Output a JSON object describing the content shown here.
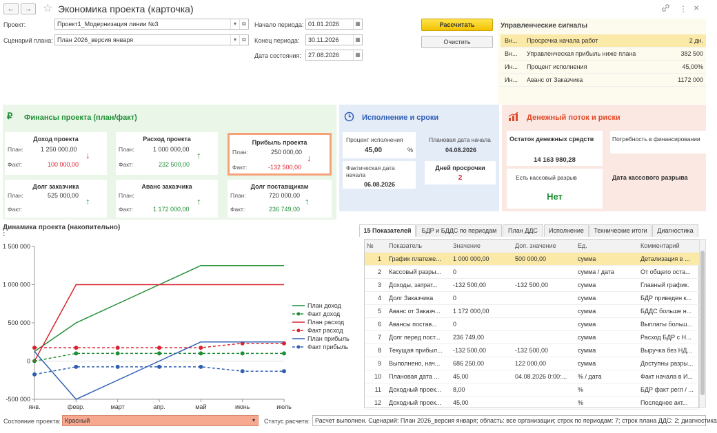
{
  "window": {
    "title": "Экономика проекта (карточка)",
    "back_icon": "←",
    "forward_icon": "→",
    "star_icon": "☆",
    "link_icon": "🔗",
    "more_icon": "⋮",
    "close_icon": "×"
  },
  "form": {
    "project_label": "Проект:",
    "project_value": "Проект1_Модернизация линии №3",
    "scenario_label": "Сценарий плана:",
    "scenario_value": "План 2026_версия января",
    "period_start_label": "Начало периода:",
    "period_start_value": "01.01.2026",
    "period_end_label": "Конец периода:",
    "period_end_value": "30.11.2026",
    "state_date_label": "Дата состояния:",
    "state_date_value": "27.08.2026",
    "calculate_button": "Рассчитать",
    "clear_button": "Очистить"
  },
  "signals": {
    "title": "Управленческие сигналы",
    "rows": [
      {
        "type": "Вн...",
        "text": "Просрочка начала работ",
        "value": "2 дн."
      },
      {
        "type": "Вн...",
        "text": "Управленческая прибыль ниже плана",
        "value": "382 500"
      },
      {
        "type": "Ин...",
        "text": "Процент исполнения",
        "value": "45,00%"
      },
      {
        "type": "Ин...",
        "text": "Аванс от Заказчика",
        "value": "1172 000"
      }
    ]
  },
  "finance": {
    "title": "Финансы проекта (план/факт)",
    "plan_label": "План:",
    "fact_label": "Факт:",
    "cards": [
      {
        "title": "Доход проекта",
        "plan": "1 250 000,00",
        "fact": "100 000,00",
        "arrow": "↓"
      },
      {
        "title": "Расход проекта",
        "plan": "1 000 000,00",
        "fact": "232 500,00",
        "arrow": "↑"
      },
      {
        "title": "Прибыль проекта",
        "plan": "250 000,00",
        "fact": "-132 500,00",
        "arrow": "↓"
      },
      {
        "title": "Долг заказчика",
        "plan": "525 000,00",
        "fact": "",
        "arrow": "↑"
      },
      {
        "title": "Аванс заказчика",
        "plan": "",
        "fact": "1 172 000,00",
        "arrow": "↑"
      },
      {
        "title": "Долг поставщикам",
        "plan": "720 000,00",
        "fact": "236 749,00",
        "arrow": "↑"
      }
    ]
  },
  "execution": {
    "title": "Исполнение и сроки",
    "percent_label": "Процент исполнения",
    "percent_value": "45,00",
    "percent_unit": "%",
    "plan_start_label": "Плановая дата начала",
    "plan_start_value": "04.08.2026",
    "actual_start_label": "Фактическая дата начала",
    "actual_start_value": "06.08.2026",
    "overdue_label": "Дней просрочки",
    "overdue_value": "2"
  },
  "cashflow": {
    "title": "Денежный поток и риски",
    "balance_label": "Остаток денежных средств",
    "balance_value": "14 163 980,28",
    "need_label": "Потребность в финансировании",
    "gap_label": "Есть кассовый разрыв",
    "gap_value": "Нет",
    "gap_date_label": "Дата кассового разрыва"
  },
  "chart_title": "Динамика проекта (накопительно)",
  "chart_title_colon": ":",
  "chart_data": {
    "type": "line",
    "categories": [
      "янв.",
      "февр.",
      "март",
      "апр.",
      "май",
      "июнь",
      "июль"
    ],
    "ylim": [
      -500000,
      1500000
    ],
    "yticks": [
      "1 500 000",
      "1 000 000",
      "500 000",
      "0",
      "-500 000"
    ],
    "series": [
      {
        "name": "План доход",
        "color": "#1f8e34",
        "dashed": false,
        "values": [
          125000,
          500000,
          750000,
          1000000,
          1250000,
          1250000,
          1250000
        ]
      },
      {
        "name": "Факт доход",
        "color": "#1f8e34",
        "dashed": true,
        "values": [
          0,
          100000,
          100000,
          100000,
          100000,
          100000,
          100000
        ]
      },
      {
        "name": "План расход",
        "color": "#d9232e",
        "dashed": false,
        "values": [
          0,
          1000000,
          1000000,
          1000000,
          1000000,
          1000000,
          1000000
        ]
      },
      {
        "name": "Факт расход",
        "color": "#d9232e",
        "dashed": true,
        "values": [
          175000,
          175000,
          175000,
          175000,
          175000,
          232500,
          232500
        ]
      },
      {
        "name": "План прибыль",
        "color": "#2f5fb3",
        "dashed": false,
        "values": [
          125000,
          -500000,
          -250000,
          0,
          250000,
          250000,
          250000
        ]
      },
      {
        "name": "Факт прибыль",
        "color": "#2f5fb3",
        "dashed": true,
        "values": [
          -175000,
          -75000,
          -75000,
          -75000,
          -75000,
          -132500,
          -132500
        ]
      }
    ]
  },
  "tabs": [
    "15 Показателей",
    "БДР и БДДС по периодам",
    "План ДДС",
    "Исполнение",
    "Технические итоги",
    "Диагностика"
  ],
  "table": {
    "headers": [
      "№",
      "Показатель",
      "Значение",
      "Доп. значение",
      "Ед.",
      "Комментарий"
    ],
    "rows": [
      [
        "1",
        "График платеже...",
        "1 000 000,00",
        "500 000,00",
        "сумма",
        "Детализация в ..."
      ],
      [
        "2",
        "Кассовый разры...",
        "0",
        "",
        "сумма / дата",
        "От общего оста..."
      ],
      [
        "3",
        "Доходы, затрат...",
        "-132 500,00",
        "-132 500,00",
        "сумма",
        "Главный график."
      ],
      [
        "4",
        "Долг Заказчика",
        "0",
        "",
        "сумма",
        "БДР приведен к..."
      ],
      [
        "5",
        "Аванс от Заказч...",
        "1 172 000,00",
        "",
        "сумма",
        "БДДС больше н..."
      ],
      [
        "6",
        "Авансы постав...",
        "0",
        "",
        "сумма",
        "Выплаты больш..."
      ],
      [
        "7",
        "Долг перед пост...",
        "236 749,00",
        "",
        "сумма",
        "Расход БДР с Н..."
      ],
      [
        "8",
        "Текущая прибыл...",
        "-132 500,00",
        "-132 500,00",
        "сумма",
        "Выручка без НД..."
      ],
      [
        "9",
        "Выполнено, нач...",
        "686 250,00",
        "122 000,00",
        "сумма",
        "Доступны разры..."
      ],
      [
        "10",
        "Плановая дата ...",
        "45,00",
        "04.08.2026 0:00:...",
        "% / дата",
        "Факт начала в И..."
      ],
      [
        "11",
        "Доходный проек...",
        "8,00",
        "",
        "%",
        "БДР факт регл / ..."
      ],
      [
        "12",
        "Доходный проек...",
        "45,00",
        "",
        "%",
        "Последнее акт..."
      ]
    ]
  },
  "footer": {
    "state_label": "Состояние проекта:",
    "state_value": "Красный",
    "status_label": "Статус расчета:",
    "status_value": "Расчет выполнен. Сценарий: План 2026_версия января; область: все организации; строк по периодам: 7; строк плана ДДС: 2; диагностика"
  }
}
